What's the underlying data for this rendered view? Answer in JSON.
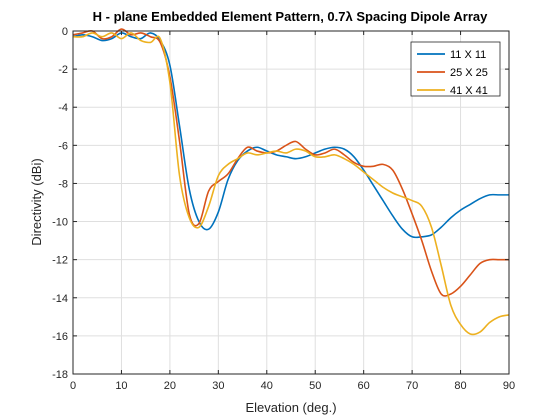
{
  "chart_data": {
    "type": "line",
    "title": "H - plane Embedded Element Pattern, 0.7λ Spacing Dipole Array",
    "xlabel": "Elevation (deg.)",
    "ylabel": "Directivity (dBi)",
    "xlim": [
      0,
      90
    ],
    "ylim": [
      -18,
      0
    ],
    "xticks": [
      0,
      10,
      20,
      30,
      40,
      50,
      60,
      70,
      80,
      90
    ],
    "yticks": [
      0,
      -2,
      -4,
      -6,
      -8,
      -10,
      -12,
      -14,
      -16,
      -18
    ],
    "grid": true,
    "legend_position": "top-right",
    "series": [
      {
        "name": "11 X 11",
        "color": "#0072BD",
        "x": [
          0,
          2,
          4,
          6,
          8,
          10,
          12,
          14,
          16,
          18,
          20,
          22,
          24,
          26,
          28,
          30,
          32,
          34,
          36,
          38,
          40,
          42,
          44,
          46,
          48,
          50,
          52,
          54,
          56,
          58,
          60,
          62,
          64,
          66,
          68,
          70,
          72,
          74,
          76,
          78,
          80,
          82,
          84,
          86,
          88,
          90
        ],
        "y": [
          -0.3,
          -0.2,
          -0.3,
          -0.5,
          -0.4,
          -0.1,
          -0.3,
          -0.4,
          -0.1,
          -0.5,
          -1.8,
          -5.0,
          -8.3,
          -10.0,
          -10.4,
          -9.5,
          -7.8,
          -6.8,
          -6.3,
          -6.1,
          -6.3,
          -6.5,
          -6.6,
          -6.7,
          -6.6,
          -6.4,
          -6.2,
          -6.1,
          -6.2,
          -6.6,
          -7.3,
          -8.1,
          -8.9,
          -9.7,
          -10.4,
          -10.8,
          -10.8,
          -10.7,
          -10.3,
          -9.8,
          -9.4,
          -9.1,
          -8.8,
          -8.6,
          -8.6,
          -8.6
        ]
      },
      {
        "name": "25 X 25",
        "color": "#D95319",
        "x": [
          0,
          2,
          4,
          6,
          8,
          10,
          12,
          14,
          16,
          18,
          20,
          22,
          24,
          26,
          28,
          30,
          32,
          34,
          36,
          38,
          40,
          42,
          44,
          46,
          48,
          50,
          52,
          54,
          56,
          58,
          60,
          62,
          64,
          66,
          68,
          70,
          72,
          74,
          76,
          78,
          80,
          82,
          84,
          86,
          88,
          90
        ],
        "y": [
          -0.2,
          -0.1,
          0.0,
          -0.4,
          -0.3,
          0.1,
          -0.2,
          -0.1,
          -0.3,
          -0.6,
          -2.4,
          -5.8,
          -9.6,
          -10.1,
          -8.4,
          -7.9,
          -7.5,
          -6.7,
          -6.1,
          -6.3,
          -6.4,
          -6.3,
          -6.0,
          -5.8,
          -6.2,
          -6.5,
          -6.4,
          -6.2,
          -6.5,
          -6.9,
          -7.1,
          -7.1,
          -7.0,
          -7.3,
          -8.3,
          -9.6,
          -11.0,
          -12.6,
          -13.8,
          -13.8,
          -13.4,
          -12.8,
          -12.2,
          -12.0,
          -12.0,
          -12.0
        ]
      },
      {
        "name": "41 X 41",
        "color": "#EDB120",
        "x": [
          0,
          2,
          4,
          6,
          8,
          10,
          12,
          14,
          16,
          18,
          20,
          22,
          24,
          26,
          28,
          30,
          32,
          34,
          36,
          38,
          40,
          42,
          44,
          46,
          48,
          50,
          52,
          54,
          56,
          58,
          60,
          62,
          64,
          66,
          68,
          70,
          72,
          74,
          76,
          78,
          80,
          82,
          84,
          86,
          88,
          90
        ],
        "y": [
          -0.3,
          -0.3,
          -0.1,
          -0.3,
          -0.1,
          -0.4,
          -0.1,
          -0.5,
          -0.6,
          -0.4,
          -2.7,
          -7.6,
          -9.8,
          -10.3,
          -9.2,
          -7.6,
          -7.0,
          -6.7,
          -6.4,
          -6.5,
          -6.4,
          -6.3,
          -6.4,
          -6.2,
          -6.3,
          -6.6,
          -6.6,
          -6.5,
          -6.7,
          -7.0,
          -7.4,
          -7.8,
          -8.2,
          -8.5,
          -8.7,
          -8.9,
          -9.2,
          -10.3,
          -12.3,
          -14.4,
          -15.4,
          -15.9,
          -15.8,
          -15.3,
          -15.0,
          -14.9
        ]
      }
    ]
  }
}
